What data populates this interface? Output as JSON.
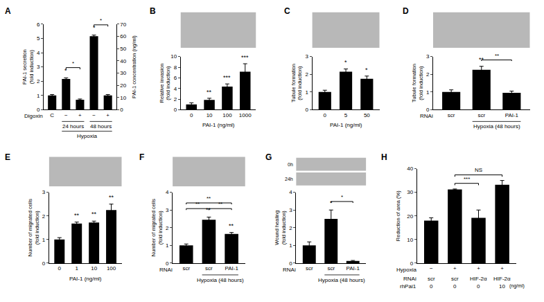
{
  "chart_data": [
    {
      "panel": "A",
      "type": "bar",
      "color": "#000000",
      "grid": false,
      "categories": [
        "C",
        "−",
        "+",
        "−",
        "+"
      ],
      "row_label": "Digoxin",
      "group_rows": [
        [
          {
            "from": 1,
            "to": 2,
            "text": "24 hours"
          },
          {
            "from": 3,
            "to": 4,
            "text": "48 hours"
          }
        ],
        [
          {
            "from": 1,
            "to": 4,
            "text": "Hypoxia"
          }
        ]
      ],
      "values": [
        1.0,
        2.15,
        0.7,
        5.15,
        1.0
      ],
      "errors": [
        0.06,
        0.08,
        0.05,
        0.08,
        0.06
      ],
      "stars": [
        null,
        "*",
        null,
        "*",
        null
      ],
      "brackets": [
        {
          "from": 1,
          "to": 2,
          "text": "*"
        },
        {
          "from": 3,
          "to": 4,
          "text": "*"
        }
      ],
      "ylabel": [
        "PAI-1 secretion",
        "(fold induction)"
      ],
      "ylim": [
        0,
        6
      ],
      "yticks": [
        0,
        1,
        2,
        3,
        4,
        5,
        6
      ],
      "y2label": "PAI-1 concentration (ng/ml)",
      "y2lim": [
        0,
        70
      ],
      "y2ticks": [
        0,
        10,
        20,
        30,
        40,
        50,
        60,
        70
      ]
    },
    {
      "panel": "B",
      "type": "bar",
      "color": "#000000",
      "grid": false,
      "categories": [
        "0",
        "10",
        "100",
        "1000"
      ],
      "xlabel": "PAI-1 (ng/ml)",
      "values": [
        1.0,
        1.85,
        4.35,
        7.15
      ],
      "errors": [
        0.3,
        0.3,
        0.5,
        1.5
      ],
      "stars": [
        null,
        "**",
        "***",
        "***"
      ],
      "brackets": [],
      "ylabel": [
        "Relative invasion",
        "(fold induction)"
      ],
      "ylim": [
        0,
        10
      ],
      "yticks": [
        0,
        2,
        4,
        6,
        8,
        10
      ]
    },
    {
      "panel": "C",
      "type": "bar",
      "color": "#000000",
      "grid": false,
      "categories": [
        "0",
        "5",
        "50"
      ],
      "xlabel": "PAI-1 (ng/ml)",
      "values": [
        1.0,
        2.15,
        1.75
      ],
      "errors": [
        0.1,
        0.15,
        0.15
      ],
      "stars": [
        null,
        "*",
        "*"
      ],
      "brackets": [],
      "ylabel": [
        "Tubule formation",
        "(fold induction)"
      ],
      "ylim": [
        0,
        3
      ],
      "yticks": [
        0,
        1,
        2,
        3
      ]
    },
    {
      "panel": "D",
      "type": "bar",
      "color": "#000000",
      "grid": false,
      "categories": [
        "scr",
        "scr",
        "PAI-1"
      ],
      "row_label": "RNAi",
      "group_rows": [
        [
          {
            "from": 1,
            "to": 2,
            "text": "Hypoxia (48 hours)"
          }
        ]
      ],
      "values": [
        1.0,
        2.25,
        0.95
      ],
      "errors": [
        0.12,
        0.2,
        0.1
      ],
      "stars": [
        null,
        "**",
        null
      ],
      "brackets": [
        {
          "from": 1,
          "to": 2,
          "text": "**"
        }
      ],
      "ylabel": [
        "Tubule formation",
        "(fold induction)"
      ],
      "ylim": [
        0,
        3
      ],
      "yticks": [
        0,
        1,
        2,
        3
      ]
    },
    {
      "panel": "E",
      "type": "bar",
      "color": "#000000",
      "grid": false,
      "categories": [
        "0",
        "1",
        "10",
        "100"
      ],
      "xlabel": "PAI-1 (ng/ml)",
      "values": [
        1.0,
        1.68,
        1.72,
        2.25
      ],
      "errors": [
        0.08,
        0.06,
        0.06,
        0.25
      ],
      "stars": [
        null,
        "**",
        "**",
        "**"
      ],
      "brackets": [],
      "ylabel": [
        "Number of migrated cells",
        "(fold induction)"
      ],
      "ylim": [
        0,
        3
      ],
      "yticks": [
        0,
        1,
        2,
        3
      ]
    },
    {
      "panel": "F",
      "type": "bar",
      "color": "#000000",
      "grid": false,
      "categories": [
        "scr",
        "scr",
        "PAI-1"
      ],
      "row_label": "RNAi",
      "group_rows": [
        [
          {
            "from": 1,
            "to": 2,
            "text": "Hypoxia (48 hours)"
          }
        ]
      ],
      "values": [
        1.0,
        2.45,
        1.65
      ],
      "errors": [
        0.08,
        0.15,
        0.08
      ],
      "stars": [
        null,
        "**",
        "**"
      ],
      "brackets": [
        {
          "from": 0,
          "to": 1,
          "text": "**"
        },
        {
          "from": 1,
          "to": 2,
          "text": "**"
        },
        {
          "from": 0,
          "to": 2,
          "text": "**"
        }
      ],
      "ylabel": [
        "Number of migrated cells",
        "(fold induction)"
      ],
      "ylim": [
        0,
        4
      ],
      "yticks": [
        0,
        1,
        2,
        3,
        4
      ]
    },
    {
      "panel": "G",
      "type": "bar",
      "color": "#000000",
      "grid": false,
      "image_labels": [
        "0h",
        "24h"
      ],
      "categories": [
        "scr",
        "scr",
        "PAI-1"
      ],
      "row_label": "RNAi",
      "group_rows": [
        [
          {
            "from": 1,
            "to": 2,
            "text": "Hypoxia (48 hours)"
          }
        ]
      ],
      "values": [
        1.0,
        2.5,
        0.12
      ],
      "errors": [
        0.2,
        0.5,
        0.03
      ],
      "stars": [
        null,
        "*",
        null
      ],
      "brackets": [
        {
          "from": 1,
          "to": 2,
          "text": "*"
        }
      ],
      "ylabel": [
        "Wound healing",
        "(fold induction)"
      ],
      "ylim": [
        0,
        4
      ],
      "yticks": [
        0,
        1,
        2,
        3,
        4
      ]
    },
    {
      "panel": "H",
      "type": "bar",
      "color": "#000000",
      "grid": false,
      "categories": [
        "−",
        "+",
        "+",
        "+"
      ],
      "row_label": "Hypoxia",
      "extra_rows": [
        {
          "label": "RNAi",
          "cells": [
            "scr",
            "scr",
            "HIF-2α",
            "HIF-2α"
          ]
        },
        {
          "label": "rhPai1",
          "cells": [
            "0",
            "0",
            "0",
            "10"
          ],
          "unit": "(ng/ml)"
        }
      ],
      "values": [
        18.0,
        31.2,
        19.2,
        33.2
      ],
      "errors": [
        1.2,
        0.2,
        3.3,
        1.8
      ],
      "stars": [
        null,
        null,
        null,
        null
      ],
      "brackets": [
        {
          "from": 1,
          "to": 2,
          "text": "***"
        },
        {
          "from": 1,
          "to": 3,
          "text": "NS"
        }
      ],
      "ylabel": [
        "Reduction of area (%)"
      ],
      "ylim": [
        0,
        40
      ],
      "yticks": [
        0,
        10,
        20,
        30,
        40
      ]
    }
  ]
}
